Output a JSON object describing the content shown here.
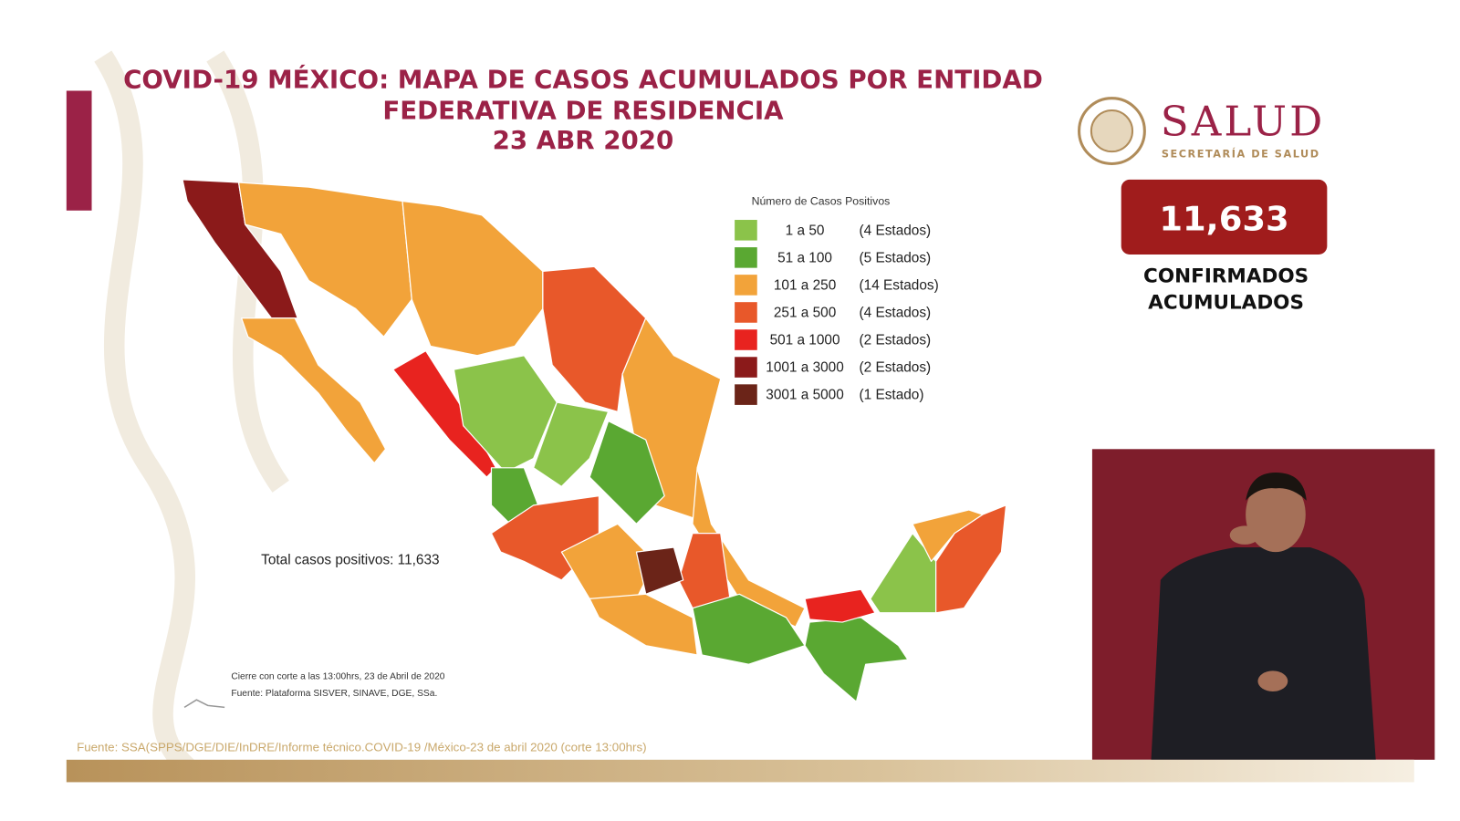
{
  "header": {
    "title_lines": [
      "COVID-19 MÉXICO: MAPA DE CASOS ACUMULADOS POR ENTIDAD",
      "FEDERATIVA DE RESIDENCIA",
      "23 ABR 2020"
    ]
  },
  "logo": {
    "name": "SALUD",
    "subtitle": "SECRETARÍA DE SALUD"
  },
  "counter": {
    "value": "11,633",
    "label_lines": [
      "CONFIRMADOS",
      "ACUMULADOS"
    ]
  },
  "legend": {
    "title": "Número de Casos Positivos",
    "items": [
      {
        "range": "1 a 50",
        "count": "(4 Estados)",
        "color": "#8bc34a"
      },
      {
        "range": "51 a 100",
        "count": "(5 Estados)",
        "color": "#5aa832"
      },
      {
        "range": "101 a 250",
        "count": "(14 Estados)",
        "color": "#f2a33a"
      },
      {
        "range": "251 a 500",
        "count": "(4 Estados)",
        "color": "#e8582a"
      },
      {
        "range": "501 a 1000",
        "count": "(2 Estados)",
        "color": "#e8231f"
      },
      {
        "range": "1001 a 3000",
        "count": "(2 Estados)",
        "color": "#8b1a1a"
      },
      {
        "range": "3001 a 5000",
        "count": "(1 Estado)",
        "color": "#6b2418"
      }
    ]
  },
  "map": {
    "total": "Total casos positivos: 11,633",
    "notes": [
      "Cierre con corte a las 13:00hrs, 23 de Abril de 2020",
      "Fuente: Plataforma SISVER, SINAVE, DGE, SSa."
    ]
  },
  "footer": {
    "source": "Fuente: SSA(SPPS/DGE/DIE/InDRE/Informe técnico.COVID-19 /México-23 de abril 2020 (corte 13:00hrs)"
  }
}
